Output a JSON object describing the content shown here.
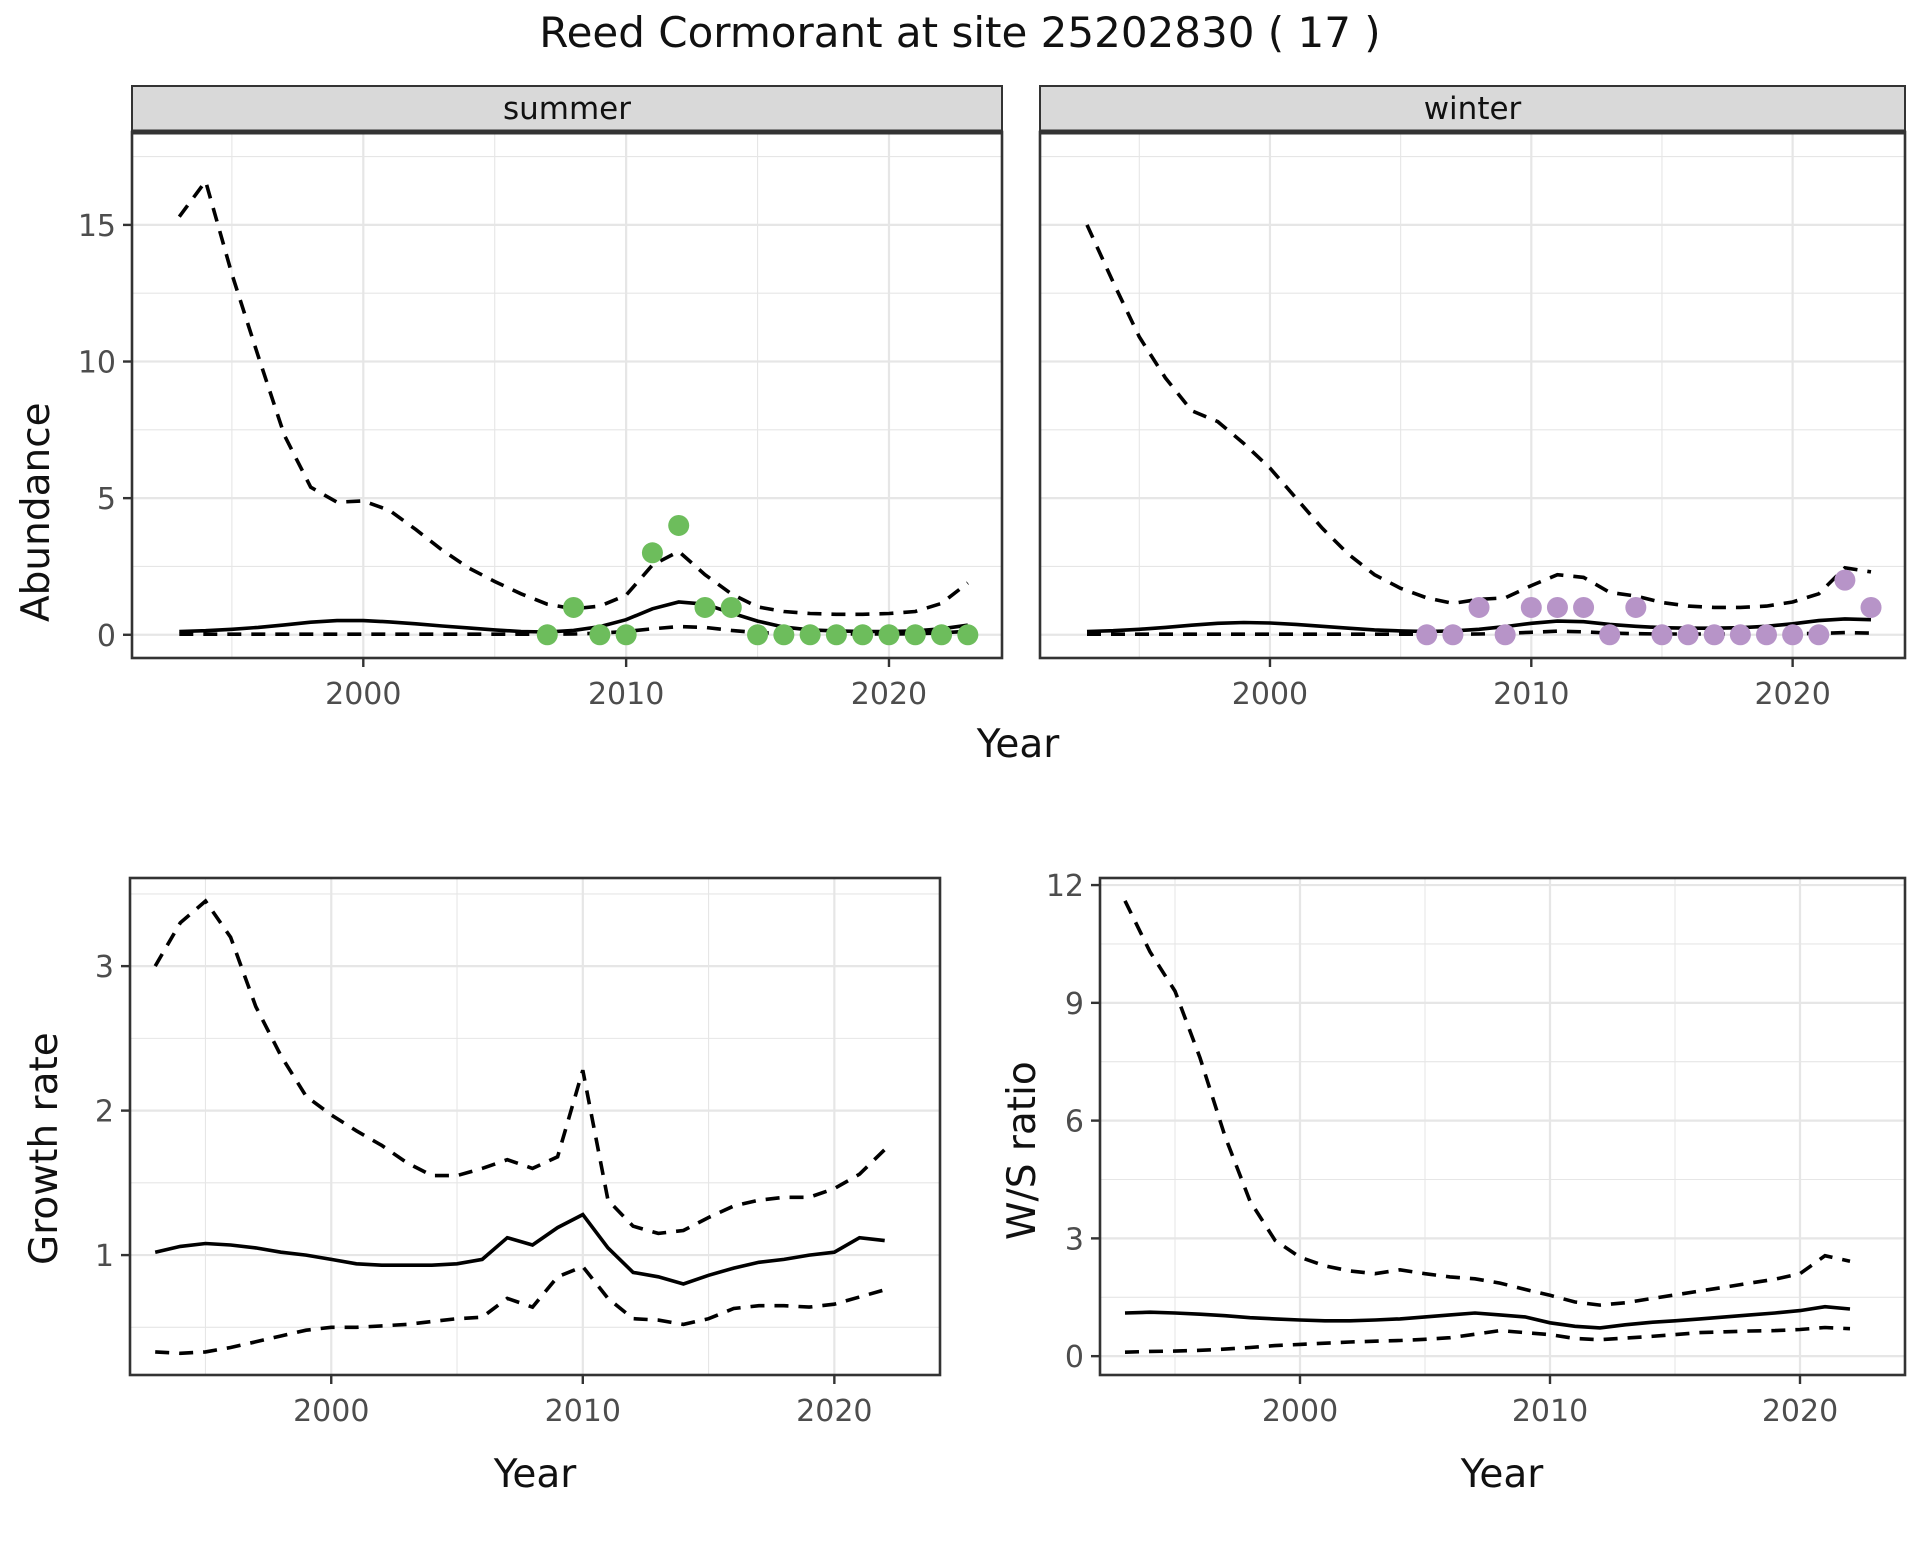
{
  "title": "Reed Cormorant at site 25202830 ( 17 )",
  "labels": {
    "year_axis": "Year",
    "abundance_axis": "Abundance",
    "growth_axis": "Growth rate",
    "ws_axis": "W/S ratio"
  },
  "facets": {
    "summer": "summer",
    "winter": "winter"
  },
  "colors": {
    "summer_points": "#6dbd5c",
    "winter_points": "#b794c8",
    "line": "#000000",
    "panel_border": "#333333",
    "strip_bg": "#d9d9d9",
    "grid": "#e6e6e6",
    "tick_text": "#4d4d4d"
  },
  "chart_data": [
    {
      "id": "abundance_summer",
      "type": "line+scatter",
      "facet": "summer",
      "xlabel": "Year",
      "ylabel": "Abundance",
      "xlim": [
        1991.2,
        2024.3
      ],
      "ylim": [
        -0.85,
        18.4
      ],
      "x_ticks": [
        2000,
        2010,
        2020
      ],
      "y_ticks": [
        0,
        5,
        10,
        15
      ],
      "x": [
        1993,
        1994,
        1995,
        1996,
        1997,
        1998,
        1999,
        2000,
        2001,
        2002,
        2003,
        2004,
        2005,
        2006,
        2007,
        2008,
        2009,
        2010,
        2011,
        2012,
        2013,
        2014,
        2015,
        2016,
        2017,
        2018,
        2019,
        2020,
        2021,
        2022,
        2023
      ],
      "series": [
        {
          "name": "upper_ci",
          "style": "dashed",
          "values": [
            15.3,
            16.6,
            13.2,
            10.2,
            7.3,
            5.4,
            4.85,
            4.9,
            4.55,
            3.85,
            3.1,
            2.45,
            1.95,
            1.5,
            1.12,
            0.95,
            1.05,
            1.45,
            2.55,
            3.05,
            2.2,
            1.5,
            1.02,
            0.85,
            0.78,
            0.75,
            0.75,
            0.78,
            0.85,
            1.15,
            1.9
          ]
        },
        {
          "name": "fit",
          "style": "solid",
          "values": [
            0.12,
            0.15,
            0.2,
            0.27,
            0.36,
            0.46,
            0.52,
            0.52,
            0.47,
            0.4,
            0.32,
            0.25,
            0.18,
            0.12,
            0.1,
            0.16,
            0.3,
            0.55,
            0.95,
            1.2,
            1.12,
            0.8,
            0.5,
            0.28,
            0.18,
            0.14,
            0.12,
            0.12,
            0.14,
            0.22,
            0.35
          ]
        },
        {
          "name": "lower_ci",
          "style": "dashed",
          "values": [
            0.02,
            0.02,
            0.02,
            0.02,
            0.02,
            0.02,
            0.02,
            0.02,
            0.02,
            0.02,
            0.02,
            0.02,
            0.02,
            0.02,
            0.02,
            0.03,
            0.06,
            0.12,
            0.22,
            0.3,
            0.27,
            0.16,
            0.08,
            0.05,
            0.04,
            0.03,
            0.03,
            0.03,
            0.04,
            0.07,
            0.13
          ]
        }
      ],
      "points": {
        "name": "observed_counts",
        "color": "#6dbd5c",
        "x": [
          2007,
          2008,
          2009,
          2010,
          2011,
          2012,
          2013,
          2014,
          2015,
          2016,
          2017,
          2018,
          2019,
          2020,
          2021,
          2022,
          2023
        ],
        "values": [
          0,
          1,
          0,
          0,
          3,
          4,
          1,
          1,
          0,
          0,
          0,
          0,
          0,
          0,
          0,
          0,
          0
        ]
      }
    },
    {
      "id": "abundance_winter",
      "type": "line+scatter",
      "facet": "winter",
      "xlabel": "Year",
      "ylabel": "Abundance",
      "xlim": [
        1991.2,
        2024.3
      ],
      "ylim": [
        -0.85,
        18.4
      ],
      "x_ticks": [
        2000,
        2010,
        2020
      ],
      "y_ticks": [
        0,
        5,
        10,
        15
      ],
      "x": [
        1993,
        1994,
        1995,
        1996,
        1997,
        1998,
        1999,
        2000,
        2001,
        2002,
        2003,
        2004,
        2005,
        2006,
        2007,
        2008,
        2009,
        2010,
        2011,
        2012,
        2013,
        2014,
        2015,
        2016,
        2017,
        2018,
        2019,
        2020,
        2021,
        2022,
        2023
      ],
      "series": [
        {
          "name": "upper_ci",
          "style": "dashed",
          "values": [
            15.0,
            12.9,
            10.9,
            9.4,
            8.2,
            7.8,
            7.0,
            6.1,
            5.0,
            3.9,
            2.95,
            2.2,
            1.7,
            1.35,
            1.15,
            1.3,
            1.35,
            1.8,
            2.2,
            2.1,
            1.55,
            1.42,
            1.18,
            1.05,
            1.0,
            1.0,
            1.05,
            1.2,
            1.5,
            2.45,
            2.3
          ]
        },
        {
          "name": "fit",
          "style": "solid",
          "values": [
            0.12,
            0.15,
            0.2,
            0.27,
            0.35,
            0.42,
            0.45,
            0.43,
            0.38,
            0.31,
            0.24,
            0.18,
            0.14,
            0.12,
            0.14,
            0.2,
            0.3,
            0.42,
            0.5,
            0.48,
            0.38,
            0.31,
            0.26,
            0.24,
            0.24,
            0.26,
            0.31,
            0.4,
            0.52,
            0.58,
            0.55
          ]
        },
        {
          "name": "lower_ci",
          "style": "dashed",
          "values": [
            0.02,
            0.02,
            0.02,
            0.02,
            0.02,
            0.02,
            0.02,
            0.02,
            0.02,
            0.02,
            0.02,
            0.02,
            0.02,
            0.02,
            0.02,
            0.03,
            0.05,
            0.09,
            0.13,
            0.11,
            0.06,
            0.04,
            0.03,
            0.03,
            0.03,
            0.03,
            0.03,
            0.04,
            0.05,
            0.08,
            0.06
          ]
        }
      ],
      "points": {
        "name": "observed_counts",
        "color": "#b794c8",
        "x": [
          2006,
          2007,
          2008,
          2009,
          2010,
          2011,
          2012,
          2013,
          2014,
          2015,
          2016,
          2017,
          2018,
          2019,
          2020,
          2021,
          2022,
          2023
        ],
        "values": [
          0,
          0,
          1,
          0,
          1,
          1,
          1,
          0,
          1,
          0,
          0,
          0,
          0,
          0,
          0,
          0,
          2,
          1
        ]
      }
    },
    {
      "id": "growth_rate",
      "type": "line",
      "facet": null,
      "xlabel": "Year",
      "ylabel": "Growth rate",
      "xlim": [
        1992.0,
        2024.2
      ],
      "ylim": [
        0.17,
        3.61
      ],
      "x_ticks": [
        2000,
        2010,
        2020
      ],
      "y_ticks": [
        1,
        2,
        3
      ],
      "x": [
        1993,
        1994,
        1995,
        1996,
        1997,
        1998,
        1999,
        2000,
        2001,
        2002,
        2003,
        2004,
        2005,
        2006,
        2007,
        2008,
        2009,
        2010,
        2011,
        2012,
        2013,
        2014,
        2015,
        2016,
        2017,
        2018,
        2019,
        2020,
        2021,
        2022
      ],
      "series": [
        {
          "name": "upper_ci",
          "style": "dashed",
          "values": [
            3.0,
            3.3,
            3.45,
            3.2,
            2.72,
            2.38,
            2.1,
            1.97,
            1.86,
            1.76,
            1.64,
            1.55,
            1.55,
            1.6,
            1.66,
            1.6,
            1.68,
            2.28,
            1.38,
            1.2,
            1.15,
            1.17,
            1.26,
            1.34,
            1.38,
            1.4,
            1.4,
            1.46,
            1.56,
            1.73
          ]
        },
        {
          "name": "fit",
          "style": "solid",
          "values": [
            1.02,
            1.06,
            1.08,
            1.07,
            1.05,
            1.02,
            1.0,
            0.97,
            0.94,
            0.93,
            0.93,
            0.93,
            0.94,
            0.97,
            1.12,
            1.07,
            1.19,
            1.28,
            1.05,
            0.88,
            0.85,
            0.8,
            0.86,
            0.91,
            0.95,
            0.97,
            1.0,
            1.02,
            1.12,
            1.1
          ]
        },
        {
          "name": "lower_ci",
          "style": "dashed",
          "values": [
            0.33,
            0.32,
            0.33,
            0.36,
            0.4,
            0.44,
            0.48,
            0.5,
            0.5,
            0.51,
            0.52,
            0.54,
            0.56,
            0.57,
            0.7,
            0.64,
            0.85,
            0.92,
            0.7,
            0.56,
            0.55,
            0.52,
            0.56,
            0.63,
            0.65,
            0.65,
            0.64,
            0.66,
            0.71,
            0.76
          ]
        }
      ],
      "points": null
    },
    {
      "id": "ws_ratio",
      "type": "line",
      "facet": null,
      "xlabel": "Year",
      "ylabel": "W/S ratio",
      "xlim": [
        1992.0,
        2024.2
      ],
      "ylim": [
        -0.48,
        12.18
      ],
      "x_ticks": [
        2000,
        2010,
        2020
      ],
      "y_ticks": [
        0,
        3,
        6,
        9,
        12
      ],
      "x": [
        1993,
        1994,
        1995,
        1996,
        1997,
        1998,
        1999,
        2000,
        2001,
        2002,
        2003,
        2004,
        2005,
        2006,
        2007,
        2008,
        2009,
        2010,
        2011,
        2012,
        2013,
        2014,
        2015,
        2016,
        2017,
        2018,
        2019,
        2020,
        2021,
        2022
      ],
      "series": [
        {
          "name": "upper_ci",
          "style": "dashed",
          "values": [
            11.6,
            10.3,
            9.3,
            7.6,
            5.6,
            3.95,
            2.95,
            2.52,
            2.3,
            2.17,
            2.1,
            2.2,
            2.1,
            2.02,
            1.97,
            1.86,
            1.7,
            1.55,
            1.38,
            1.3,
            1.36,
            1.46,
            1.56,
            1.66,
            1.76,
            1.86,
            1.96,
            2.1,
            2.56,
            2.42
          ]
        },
        {
          "name": "fit",
          "style": "solid",
          "values": [
            1.1,
            1.12,
            1.1,
            1.07,
            1.03,
            0.98,
            0.95,
            0.92,
            0.9,
            0.9,
            0.92,
            0.95,
            1.0,
            1.05,
            1.1,
            1.05,
            1.0,
            0.85,
            0.76,
            0.72,
            0.8,
            0.86,
            0.9,
            0.95,
            1.0,
            1.05,
            1.1,
            1.16,
            1.26,
            1.2
          ]
        },
        {
          "name": "lower_ci",
          "style": "dashed",
          "values": [
            0.1,
            0.12,
            0.13,
            0.15,
            0.18,
            0.22,
            0.27,
            0.3,
            0.33,
            0.36,
            0.38,
            0.4,
            0.43,
            0.47,
            0.56,
            0.65,
            0.6,
            0.55,
            0.45,
            0.42,
            0.46,
            0.5,
            0.55,
            0.6,
            0.62,
            0.64,
            0.65,
            0.68,
            0.73,
            0.7
          ]
        }
      ],
      "points": null
    }
  ]
}
